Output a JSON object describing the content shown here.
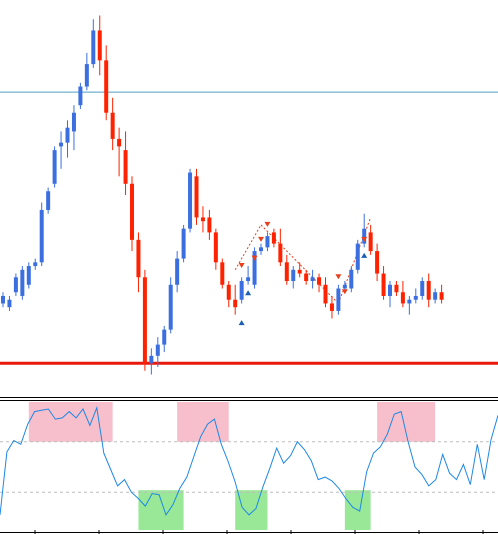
{
  "chart_data": [
    {
      "type": "candlestick",
      "title": "",
      "ylim": [
        0,
        100
      ],
      "grid": false,
      "colors": {
        "bull": "#3b6fe0",
        "bear": "#ff2200",
        "level_line": "#4f9ec4",
        "support_line": "#e8180c",
        "marker_up": "#1a5fb4",
        "marker_down": "#e8401c",
        "zigzag": "#e8401c"
      },
      "resistance_level": 77.5,
      "support_level": 5,
      "candles": [
        {
          "o": 21,
          "h": 24,
          "l": 20,
          "c": 23
        },
        {
          "o": 20,
          "h": 23,
          "l": 19,
          "c": 22
        },
        {
          "o": 24,
          "h": 29,
          "l": 23,
          "c": 28
        },
        {
          "o": 23,
          "h": 31,
          "l": 22,
          "c": 30
        },
        {
          "o": 26,
          "h": 32,
          "l": 25,
          "c": 31
        },
        {
          "o": 31,
          "h": 33,
          "l": 30,
          "c": 32
        },
        {
          "o": 32,
          "h": 48,
          "l": 31,
          "c": 46
        },
        {
          "o": 46,
          "h": 52,
          "l": 45,
          "c": 51
        },
        {
          "o": 53,
          "h": 63,
          "l": 52,
          "c": 62
        },
        {
          "o": 63,
          "h": 67,
          "l": 57,
          "c": 64
        },
        {
          "o": 64,
          "h": 70,
          "l": 60,
          "c": 68
        },
        {
          "o": 67,
          "h": 74,
          "l": 62,
          "c": 72
        },
        {
          "o": 74,
          "h": 80,
          "l": 73,
          "c": 79
        },
        {
          "o": 79,
          "h": 88,
          "l": 78,
          "c": 85
        },
        {
          "o": 85,
          "h": 97,
          "l": 84,
          "c": 94
        },
        {
          "o": 94,
          "h": 98,
          "l": 82,
          "c": 86
        },
        {
          "o": 86,
          "h": 90,
          "l": 70,
          "c": 72
        },
        {
          "o": 72,
          "h": 76,
          "l": 62,
          "c": 65
        },
        {
          "o": 65,
          "h": 68,
          "l": 55,
          "c": 63
        },
        {
          "o": 62,
          "h": 67,
          "l": 50,
          "c": 53
        },
        {
          "o": 53,
          "h": 55,
          "l": 35,
          "c": 38
        },
        {
          "o": 38,
          "h": 40,
          "l": 24,
          "c": 28
        },
        {
          "o": 28,
          "h": 30,
          "l": 3,
          "c": 5
        },
        {
          "o": 5,
          "h": 9,
          "l": 2,
          "c": 7
        },
        {
          "o": 7,
          "h": 12,
          "l": 4,
          "c": 10
        },
        {
          "o": 10,
          "h": 15,
          "l": 8,
          "c": 14
        },
        {
          "o": 14,
          "h": 28,
          "l": 13,
          "c": 26
        },
        {
          "o": 26,
          "h": 35,
          "l": 24,
          "c": 33
        },
        {
          "o": 33,
          "h": 42,
          "l": 32,
          "c": 41
        },
        {
          "o": 41,
          "h": 57,
          "l": 40,
          "c": 56
        },
        {
          "o": 55,
          "h": 57,
          "l": 42,
          "c": 44
        },
        {
          "o": 44,
          "h": 47,
          "l": 40,
          "c": 43
        },
        {
          "o": 44,
          "h": 46,
          "l": 38,
          "c": 40
        },
        {
          "o": 40,
          "h": 41,
          "l": 30,
          "c": 32
        },
        {
          "o": 32,
          "h": 33,
          "l": 25,
          "c": 26
        },
        {
          "o": 26,
          "h": 27,
          "l": 20,
          "c": 22
        },
        {
          "o": 22,
          "h": 26,
          "l": 18,
          "c": 20
        },
        {
          "o": 22,
          "h": 28,
          "l": 21,
          "c": 27
        },
        {
          "o": 27,
          "h": 31,
          "l": 26,
          "c": 28
        },
        {
          "o": 26,
          "h": 36,
          "l": 25,
          "c": 35
        },
        {
          "o": 35,
          "h": 37,
          "l": 34,
          "c": 36
        },
        {
          "o": 36,
          "h": 40,
          "l": 35,
          "c": 39
        },
        {
          "o": 40,
          "h": 41,
          "l": 36,
          "c": 37
        },
        {
          "o": 37,
          "h": 41,
          "l": 31,
          "c": 32
        },
        {
          "o": 32,
          "h": 34,
          "l": 26,
          "c": 27
        },
        {
          "o": 27,
          "h": 31,
          "l": 25,
          "c": 30
        },
        {
          "o": 30,
          "h": 32,
          "l": 28,
          "c": 29
        },
        {
          "o": 29,
          "h": 30,
          "l": 26,
          "c": 27
        },
        {
          "o": 27,
          "h": 30,
          "l": 25,
          "c": 28
        },
        {
          "o": 28,
          "h": 29,
          "l": 24,
          "c": 26
        },
        {
          "o": 26,
          "h": 28,
          "l": 20,
          "c": 21
        },
        {
          "o": 21,
          "h": 23,
          "l": 17,
          "c": 19
        },
        {
          "o": 19,
          "h": 26,
          "l": 18,
          "c": 25
        },
        {
          "o": 25,
          "h": 27,
          "l": 24,
          "c": 26
        },
        {
          "o": 25,
          "h": 31,
          "l": 24,
          "c": 30
        },
        {
          "o": 30,
          "h": 38,
          "l": 29,
          "c": 37
        },
        {
          "o": 37,
          "h": 45,
          "l": 36,
          "c": 41
        },
        {
          "o": 40,
          "h": 42,
          "l": 34,
          "c": 35
        },
        {
          "o": 35,
          "h": 37,
          "l": 27,
          "c": 29
        },
        {
          "o": 29,
          "h": 31,
          "l": 22,
          "c": 23
        },
        {
          "o": 23,
          "h": 27,
          "l": 20,
          "c": 26
        },
        {
          "o": 26,
          "h": 27,
          "l": 23,
          "c": 24
        },
        {
          "o": 24,
          "h": 27,
          "l": 20,
          "c": 21
        },
        {
          "o": 21,
          "h": 23,
          "l": 18,
          "c": 22
        },
        {
          "o": 22,
          "h": 25,
          "l": 21,
          "c": 23
        },
        {
          "o": 23,
          "h": 28,
          "l": 22,
          "c": 27
        },
        {
          "o": 27,
          "h": 29,
          "l": 20,
          "c": 22
        },
        {
          "o": 22,
          "h": 25,
          "l": 21,
          "c": 24
        },
        {
          "o": 24,
          "h": 26,
          "l": 21,
          "c": 22
        }
      ],
      "signals": [
        {
          "index": 37,
          "side": "sell",
          "value": 31
        },
        {
          "index": 37,
          "side": "buy",
          "value": 16
        },
        {
          "index": 38,
          "side": "buy",
          "value": 24
        },
        {
          "index": 39,
          "side": "sell",
          "value": 33
        },
        {
          "index": 40,
          "side": "sell",
          "value": 38
        },
        {
          "index": 41,
          "side": "sell",
          "value": 42
        },
        {
          "index": 52,
          "side": "sell",
          "value": 28
        },
        {
          "index": 53,
          "side": "sell",
          "value": 24
        },
        {
          "index": 56,
          "side": "sell",
          "value": 38
        },
        {
          "index": 56,
          "side": "buy",
          "value": 34
        }
      ],
      "zigzag": [
        [
          36,
          30
        ],
        [
          40,
          42
        ],
        [
          52,
          21
        ],
        [
          57,
          44
        ]
      ]
    },
    {
      "type": "line",
      "title": "",
      "ylim": [
        0,
        100
      ],
      "levels": [
        70,
        30
      ],
      "grid": false,
      "colors": {
        "line": "#1e88e5",
        "overbought": "#f7bfcb",
        "oversold": "#98e898",
        "level": "#bdbdbd"
      },
      "overbought_zones": [
        [
          4,
          17
        ],
        [
          27,
          35
        ],
        [
          58,
          67
        ]
      ],
      "oversold_zones": [
        [
          21,
          28
        ],
        [
          36,
          41
        ],
        [
          53,
          57
        ]
      ],
      "series": [
        {
          "values": [
            12,
            62,
            71,
            68,
            84,
            94,
            95,
            96,
            88,
            89,
            94,
            89,
            96,
            83,
            97,
            61,
            48,
            35,
            40,
            30,
            25,
            19,
            29,
            28,
            12,
            20,
            33,
            42,
            58,
            74,
            84,
            88,
            68,
            54,
            38,
            18,
            12,
            17,
            34,
            49,
            65,
            53,
            59,
            70,
            64,
            55,
            40,
            42,
            39,
            33,
            25,
            18,
            15,
            46,
            61,
            66,
            76,
            92,
            94,
            70,
            50,
            44,
            35,
            40,
            60,
            45,
            40,
            52,
            36,
            68,
            40,
            72,
            91
          ]
        }
      ]
    }
  ]
}
